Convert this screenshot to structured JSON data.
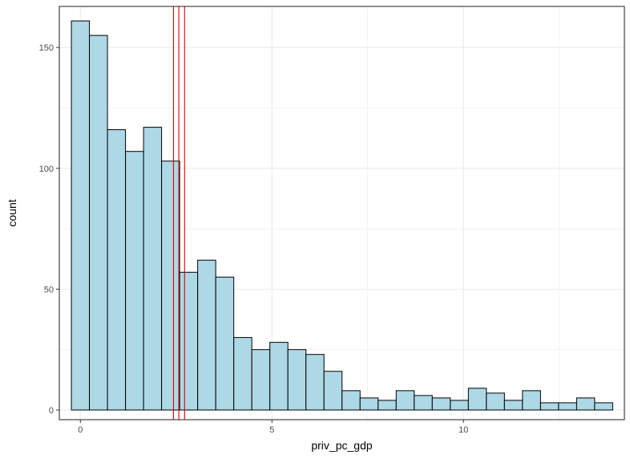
{
  "chart_data": {
    "type": "bar",
    "subtype": "histogram",
    "xlabel": "priv_pc_gdp",
    "ylabel": "count",
    "xlim": [
      -0.55,
      14.2
    ],
    "ylim": [
      -4,
      167
    ],
    "x_ticks": [
      0,
      5,
      10
    ],
    "y_ticks": [
      0,
      50,
      100,
      150
    ],
    "bin_width": 0.471,
    "bin_start": -0.235,
    "values": [
      161,
      155,
      116,
      107,
      117,
      103,
      57,
      62,
      55,
      30,
      25,
      28,
      25,
      23,
      16,
      8,
      5,
      4,
      8,
      6,
      5,
      4,
      9,
      7,
      4,
      8,
      3,
      3,
      5,
      3
    ],
    "vertical_lines": [
      2.43,
      2.57,
      2.72
    ],
    "colors": {
      "bar_fill": "#add8e6",
      "bar_stroke": "#000000",
      "line": "#e00000",
      "grid": "#ebebeb",
      "panel_border": "#333333"
    },
    "grid": true,
    "legend": "none"
  }
}
